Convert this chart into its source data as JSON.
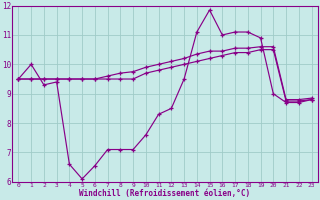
{
  "bg_color": "#c8eae8",
  "line_color": "#880088",
  "grid_color": "#a0ccc8",
  "xlabel": "Windchill (Refroidissement éolien,°C)",
  "xlim": [
    -0.5,
    23.5
  ],
  "ylim": [
    6,
    12
  ],
  "yticks": [
    6,
    7,
    8,
    9,
    10,
    11,
    12
  ],
  "xticks": [
    0,
    1,
    2,
    3,
    4,
    5,
    6,
    7,
    8,
    9,
    10,
    11,
    12,
    13,
    14,
    15,
    16,
    17,
    18,
    19,
    20,
    21,
    22,
    23
  ],
  "line1_x": [
    0,
    1,
    2,
    3,
    4,
    5,
    6,
    7,
    8,
    9,
    10,
    11,
    12,
    13,
    14,
    15,
    16,
    17,
    18,
    19,
    20,
    21,
    22,
    23
  ],
  "line1_y": [
    9.5,
    10.0,
    9.3,
    9.4,
    6.6,
    6.1,
    6.55,
    7.1,
    7.1,
    7.1,
    7.6,
    8.3,
    8.5,
    9.5,
    11.1,
    11.85,
    11.0,
    11.1,
    11.1,
    10.9,
    9.0,
    8.7,
    8.7,
    8.8
  ],
  "line2_x": [
    0,
    1,
    2,
    3,
    4,
    5,
    6,
    7,
    8,
    9,
    10,
    11,
    12,
    13,
    14,
    15,
    16,
    17,
    18,
    19,
    20,
    21,
    22,
    23
  ],
  "line2_y": [
    9.5,
    9.5,
    9.5,
    9.5,
    9.5,
    9.5,
    9.5,
    9.6,
    9.7,
    9.75,
    9.9,
    10.0,
    10.1,
    10.2,
    10.35,
    10.45,
    10.45,
    10.55,
    10.55,
    10.6,
    10.6,
    8.8,
    8.8,
    8.85
  ],
  "line3_x": [
    0,
    1,
    2,
    3,
    4,
    5,
    6,
    7,
    8,
    9,
    10,
    11,
    12,
    13,
    14,
    15,
    16,
    17,
    18,
    19,
    20,
    21,
    22,
    23
  ],
  "line3_y": [
    9.5,
    9.5,
    9.5,
    9.5,
    9.5,
    9.5,
    9.5,
    9.5,
    9.5,
    9.5,
    9.7,
    9.8,
    9.9,
    10.0,
    10.1,
    10.2,
    10.3,
    10.4,
    10.4,
    10.5,
    10.5,
    8.75,
    8.75,
    8.8
  ]
}
